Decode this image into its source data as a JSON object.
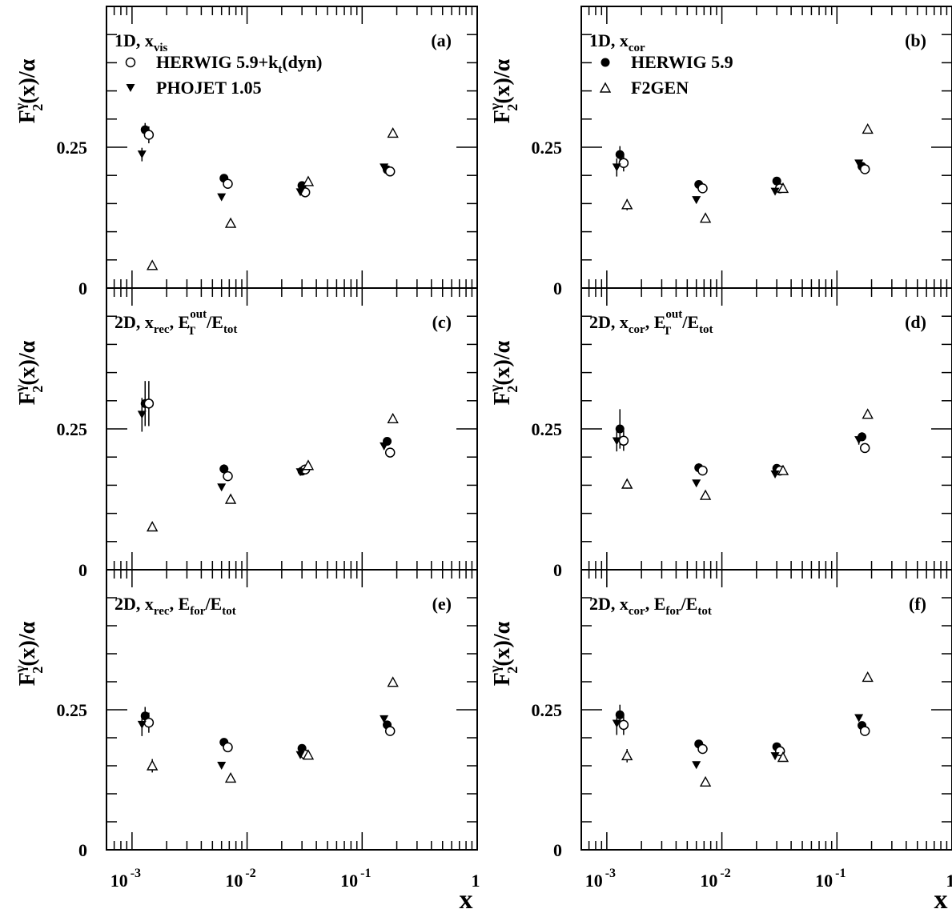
{
  "figure": {
    "y_title_main": "F",
    "y_title_sub": "2",
    "y_title_sup": "γ",
    "y_title_rest": "(x)/α",
    "x_title": "x"
  },
  "chart_data": [
    {
      "type": "scatter",
      "id": "a",
      "tag": "(a)",
      "label_main": "1D, x",
      "label_sub": "vis",
      "xscale": "log",
      "xlim": [
        0.0006,
        1
      ],
      "ylim": [
        0,
        0.5
      ],
      "x_ticklabels": [],
      "y_ticks": [
        0,
        0.25
      ],
      "y_ticklabels": [
        "0",
        "0.25"
      ],
      "legend": [
        {
          "marker": "circle-open",
          "text": "HERWIG 5.9+k",
          "sub": "t",
          "tail": "(dyn)"
        },
        {
          "marker": "triangle-down-filled",
          "text": "PHOJET 1.05",
          "sub": "",
          "tail": ""
        }
      ],
      "series": [
        {
          "name": "",
          "marker": "circle-filled",
          "x": [
            0.0013,
            0.0063,
            0.03,
            0.165
          ],
          "y": [
            0.281,
            0.195,
            0.182,
            0.21
          ],
          "yerr": [
            0.012,
            0.004,
            0.004,
            0.004
          ]
        },
        {
          "name": "HERWIG 5.9+k_t(dyn)",
          "marker": "circle-open",
          "x": [
            0.0014,
            0.0068,
            0.032,
            0.175
          ],
          "y": [
            0.272,
            0.185,
            0.17,
            0.207
          ],
          "yerr": [
            0.015,
            0.004,
            0.004,
            0.006
          ]
        },
        {
          "name": "PHOJET 1.05",
          "marker": "triangle-down-filled",
          "x": [
            0.00122,
            0.006,
            0.029,
            0.155
          ],
          "y": [
            0.237,
            0.161,
            0.17,
            0.214
          ],
          "yerr": [
            0.012,
            0.003,
            0.003,
            0.004
          ]
        },
        {
          "name": "",
          "marker": "triangle-up-open",
          "x": [
            0.0015,
            0.0072,
            0.034,
            0.185
          ],
          "y": [
            0.04,
            0.115,
            0.189,
            0.275
          ],
          "yerr": [
            0.004,
            0.003,
            0.004,
            0.004
          ]
        }
      ]
    },
    {
      "type": "scatter",
      "id": "b",
      "tag": "(b)",
      "label_main": "1D, x",
      "label_sub": "cor",
      "xscale": "log",
      "xlim": [
        0.0006,
        1
      ],
      "ylim": [
        0,
        0.5
      ],
      "x_ticklabels": [],
      "y_ticks": [
        0,
        0.25
      ],
      "y_ticklabels": [
        "0",
        "0.25"
      ],
      "legend": [
        {
          "marker": "circle-filled",
          "text": "HERWIG 5.9",
          "sub": "",
          "tail": ""
        },
        {
          "marker": "triangle-up-open",
          "text": "F2GEN",
          "sub": "",
          "tail": ""
        }
      ],
      "series": [
        {
          "name": "HERWIG 5.9",
          "marker": "circle-filled",
          "x": [
            0.0013,
            0.0063,
            0.03,
            0.165
          ],
          "y": [
            0.237,
            0.184,
            0.19,
            0.216
          ],
          "yerr": [
            0.015,
            0.004,
            0.004,
            0.004
          ]
        },
        {
          "name": "",
          "marker": "circle-open",
          "x": [
            0.0014,
            0.0068,
            0.032,
            0.175
          ],
          "y": [
            0.222,
            0.177,
            0.177,
            0.211
          ],
          "yerr": [
            0.015,
            0.004,
            0.004,
            0.005
          ]
        },
        {
          "name": "",
          "marker": "triangle-down-filled",
          "x": [
            0.00122,
            0.006,
            0.029,
            0.155
          ],
          "y": [
            0.214,
            0.156,
            0.171,
            0.221
          ],
          "yerr": [
            0.016,
            0.003,
            0.003,
            0.004
          ]
        },
        {
          "name": "F2GEN",
          "marker": "triangle-up-open",
          "x": [
            0.0015,
            0.0072,
            0.034,
            0.185
          ],
          "y": [
            0.148,
            0.124,
            0.177,
            0.282
          ],
          "yerr": [
            0.01,
            0.003,
            0.004,
            0.004
          ]
        }
      ]
    },
    {
      "type": "scatter",
      "id": "c",
      "tag": "(c)",
      "label_main": "2D, x",
      "label_sub": "rec",
      "label_mid": ", E",
      "label_mid_sub": "T",
      "label_mid_sup": "out",
      "label_end": "/E",
      "label_end_sub": "tot",
      "xscale": "log",
      "xlim": [
        0.0006,
        1
      ],
      "ylim": [
        0,
        0.5
      ],
      "x_ticklabels": [],
      "y_ticks": [
        0,
        0.25
      ],
      "y_ticklabels": [
        "0",
        "0.25"
      ],
      "series": [
        {
          "name": "",
          "marker": "circle-filled",
          "x": [
            0.0013,
            0.0063,
            0.03,
            0.165
          ],
          "y": [
            0.295,
            0.179,
            0.175,
            0.228
          ],
          "yerr": [
            0.04,
            0.008,
            0.004,
            0.006
          ]
        },
        {
          "name": "",
          "marker": "circle-open",
          "x": [
            0.0014,
            0.0068,
            0.032,
            0.175
          ],
          "y": [
            0.295,
            0.166,
            0.178,
            0.208
          ],
          "yerr": [
            0.04,
            0.006,
            0.004,
            0.006
          ]
        },
        {
          "name": "",
          "marker": "triangle-down-filled",
          "x": [
            0.00122,
            0.006,
            0.029,
            0.155
          ],
          "y": [
            0.275,
            0.146,
            0.173,
            0.219
          ],
          "yerr": [
            0.03,
            0.004,
            0.004,
            0.006
          ]
        },
        {
          "name": "",
          "marker": "triangle-up-open",
          "x": [
            0.0015,
            0.0072,
            0.034,
            0.185
          ],
          "y": [
            0.076,
            0.125,
            0.185,
            0.268
          ],
          "yerr": [
            0.004,
            0.003,
            0.004,
            0.004
          ]
        }
      ]
    },
    {
      "type": "scatter",
      "id": "d",
      "tag": "(d)",
      "label_main": "2D, x",
      "label_sub": "cor",
      "label_mid": ", E",
      "label_mid_sub": "T",
      "label_mid_sup": "out",
      "label_end": "/E",
      "label_end_sub": "tot",
      "xscale": "log",
      "xlim": [
        0.0006,
        1
      ],
      "ylim": [
        0,
        0.5
      ],
      "x_ticklabels": [],
      "y_ticks": [
        0,
        0.25
      ],
      "y_ticklabels": [
        "0",
        "0.25"
      ],
      "series": [
        {
          "name": "",
          "marker": "circle-filled",
          "x": [
            0.0013,
            0.0063,
            0.03,
            0.165
          ],
          "y": [
            0.25,
            0.181,
            0.18,
            0.236
          ],
          "yerr": [
            0.035,
            0.008,
            0.004,
            0.008
          ]
        },
        {
          "name": "",
          "marker": "circle-open",
          "x": [
            0.0014,
            0.0068,
            0.032,
            0.175
          ],
          "y": [
            0.229,
            0.176,
            0.176,
            0.216
          ],
          "yerr": [
            0.018,
            0.006,
            0.004,
            0.006
          ]
        },
        {
          "name": "",
          "marker": "triangle-down-filled",
          "x": [
            0.00122,
            0.006,
            0.029,
            0.155
          ],
          "y": [
            0.228,
            0.153,
            0.169,
            0.23
          ],
          "yerr": [
            0.018,
            0.004,
            0.004,
            0.008
          ]
        },
        {
          "name": "",
          "marker": "triangle-up-open",
          "x": [
            0.0015,
            0.0072,
            0.034,
            0.185
          ],
          "y": [
            0.152,
            0.132,
            0.176,
            0.276
          ],
          "yerr": [
            0.008,
            0.003,
            0.004,
            0.004
          ]
        }
      ]
    },
    {
      "type": "scatter",
      "id": "e",
      "tag": "(e)",
      "label_main": "2D, x",
      "label_sub": "rec",
      "label_mid": ", E",
      "label_mid_sub": "for",
      "label_mid_sup": "",
      "label_end": "/E",
      "label_end_sub": "tot",
      "xscale": "log",
      "xlim": [
        0.0006,
        1
      ],
      "ylim": [
        0,
        0.5
      ],
      "x_ticks": [
        0.001,
        0.01,
        0.1,
        1
      ],
      "x_ticklabels": [
        {
          "base": "10",
          "exp": "-3"
        },
        {
          "base": "10",
          "exp": "-2"
        },
        {
          "base": "10",
          "exp": "-1"
        },
        {
          "base": "1",
          "exp": ""
        }
      ],
      "y_ticks": [
        0,
        0.25
      ],
      "y_ticklabels": [
        "0",
        "0.25"
      ],
      "series": [
        {
          "name": "",
          "marker": "circle-filled",
          "x": [
            0.0013,
            0.0063,
            0.03,
            0.165
          ],
          "y": [
            0.239,
            0.192,
            0.181,
            0.223
          ],
          "yerr": [
            0.016,
            0.004,
            0.004,
            0.005
          ]
        },
        {
          "name": "",
          "marker": "circle-open",
          "x": [
            0.0014,
            0.0068,
            0.032,
            0.175
          ],
          "y": [
            0.227,
            0.183,
            0.17,
            0.212
          ],
          "yerr": [
            0.018,
            0.004,
            0.004,
            0.005
          ]
        },
        {
          "name": "",
          "marker": "triangle-down-filled",
          "x": [
            0.00122,
            0.006,
            0.029,
            0.155
          ],
          "y": [
            0.223,
            0.15,
            0.169,
            0.233
          ],
          "yerr": [
            0.02,
            0.003,
            0.003,
            0.004
          ]
        },
        {
          "name": "",
          "marker": "triangle-up-open",
          "x": [
            0.0015,
            0.0072,
            0.034,
            0.185
          ],
          "y": [
            0.15,
            0.128,
            0.169,
            0.299
          ],
          "yerr": [
            0.012,
            0.003,
            0.003,
            0.005
          ]
        }
      ]
    },
    {
      "type": "scatter",
      "id": "f",
      "tag": "(f)",
      "label_main": "2D, x",
      "label_sub": "cor",
      "label_mid": ", E",
      "label_mid_sub": "for",
      "label_mid_sup": "",
      "label_end": "/E",
      "label_end_sub": "tot",
      "xscale": "log",
      "xlim": [
        0.0006,
        1
      ],
      "ylim": [
        0,
        0.5
      ],
      "x_ticks": [
        0.001,
        0.01,
        0.1,
        1
      ],
      "x_ticklabels": [
        {
          "base": "10",
          "exp": "-3"
        },
        {
          "base": "10",
          "exp": "-2"
        },
        {
          "base": "10",
          "exp": "-1"
        },
        {
          "base": "1",
          "exp": ""
        }
      ],
      "y_ticks": [
        0,
        0.25
      ],
      "y_ticklabels": [
        "0",
        "0.25"
      ],
      "series": [
        {
          "name": "",
          "marker": "circle-filled",
          "x": [
            0.0013,
            0.0063,
            0.03,
            0.165
          ],
          "y": [
            0.241,
            0.189,
            0.184,
            0.222
          ],
          "yerr": [
            0.018,
            0.004,
            0.004,
            0.005
          ]
        },
        {
          "name": "",
          "marker": "circle-open",
          "x": [
            0.0014,
            0.0068,
            0.032,
            0.175
          ],
          "y": [
            0.223,
            0.18,
            0.176,
            0.212
          ],
          "yerr": [
            0.018,
            0.004,
            0.004,
            0.005
          ]
        },
        {
          "name": "",
          "marker": "triangle-down-filled",
          "x": [
            0.00122,
            0.006,
            0.029,
            0.155
          ],
          "y": [
            0.225,
            0.151,
            0.167,
            0.235
          ],
          "yerr": [
            0.02,
            0.003,
            0.003,
            0.004
          ]
        },
        {
          "name": "",
          "marker": "triangle-up-open",
          "x": [
            0.0015,
            0.0072,
            0.034,
            0.185
          ],
          "y": [
            0.168,
            0.121,
            0.165,
            0.308
          ],
          "yerr": [
            0.012,
            0.003,
            0.003,
            0.006
          ]
        }
      ]
    }
  ]
}
